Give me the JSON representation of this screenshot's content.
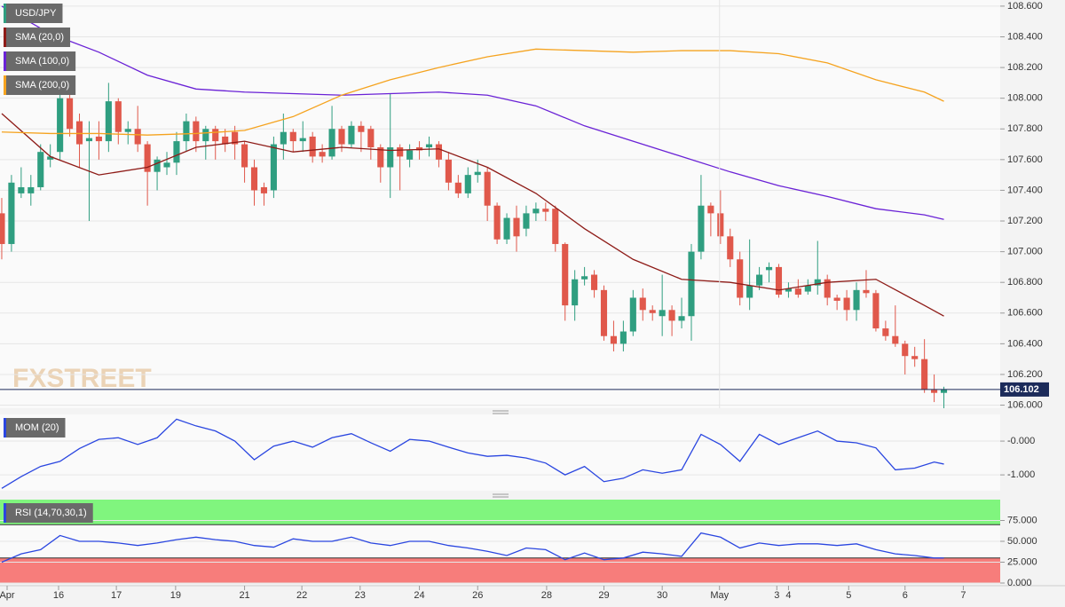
{
  "chart_data": [
    {
      "type": "candlestick",
      "watermark": "FXSTREET",
      "last_price": 106.102,
      "last_price_color": "#1c2b5a",
      "xlim": [
        -0.18,
        102.8
      ],
      "ylim": [
        105.98,
        108.64
      ],
      "yticks": [
        {
          "value": 106.0,
          "label": "106.000"
        },
        {
          "value": 106.2,
          "label": "106.200"
        },
        {
          "value": 106.4,
          "label": "106.400"
        },
        {
          "value": 106.6,
          "label": "106.600"
        },
        {
          "value": 106.8,
          "label": "106.800"
        },
        {
          "value": 107.0,
          "label": "107.000"
        },
        {
          "value": 107.2,
          "label": "107.200"
        },
        {
          "value": 107.4,
          "label": "107.400"
        },
        {
          "value": 107.6,
          "label": "107.600"
        },
        {
          "value": 107.8,
          "label": "107.800"
        },
        {
          "value": 108.0,
          "label": "108.000"
        },
        {
          "value": 108.2,
          "label": "108.200"
        },
        {
          "value": 108.4,
          "label": "108.400"
        },
        {
          "value": 108.6,
          "label": "108.600"
        }
      ],
      "series": [
        {
          "name": "USD/JPY",
          "type": "candlestick",
          "color": "#2f9e80",
          "up_color": "#2f9e80",
          "down_color": "#e0584b",
          "open": [
            107.25,
            107.05,
            107.38,
            107.38,
            107.42,
            107.6,
            107.65,
            108.0,
            107.85,
            107.72,
            107.75,
            107.72,
            107.98,
            107.78,
            107.8,
            107.7,
            107.52,
            107.55,
            107.58,
            107.72,
            107.85,
            107.72,
            107.8,
            107.75,
            107.78,
            107.7,
            107.55,
            107.42,
            107.4,
            107.7,
            107.78,
            107.72,
            107.75,
            107.65,
            107.62,
            107.8,
            107.7,
            107.82,
            107.8,
            107.68,
            107.55,
            107.68,
            107.6,
            107.68,
            107.68,
            107.7,
            107.6,
            107.45,
            107.38,
            107.5,
            107.52,
            107.3,
            107.08,
            107.22,
            107.15,
            107.25,
            107.28,
            107.28,
            107.05,
            106.65,
            106.82,
            106.85,
            106.75,
            106.45,
            106.4,
            106.48,
            106.7,
            106.62,
            106.58,
            106.62,
            106.55,
            106.58,
            107.0,
            107.3,
            107.25,
            107.1,
            106.95,
            106.7,
            106.78,
            106.88,
            106.9,
            106.74,
            106.76,
            106.74,
            106.78,
            106.82,
            106.7,
            106.7,
            106.62,
            106.75,
            106.73,
            106.5,
            106.45,
            106.4,
            106.32,
            106.3,
            106.1,
            106.08
          ],
          "high": [
            107.35,
            107.5,
            107.55,
            107.5,
            107.7,
            107.7,
            108.05,
            108.05,
            107.9,
            107.85,
            107.85,
            108.1,
            108.0,
            107.85,
            107.95,
            107.72,
            107.62,
            107.65,
            107.78,
            107.9,
            107.88,
            107.82,
            107.82,
            107.8,
            107.82,
            107.72,
            107.6,
            107.45,
            107.75,
            107.9,
            107.8,
            107.85,
            107.78,
            107.7,
            107.95,
            107.82,
            107.85,
            107.85,
            107.82,
            107.7,
            108.03,
            107.7,
            107.7,
            107.72,
            107.75,
            107.72,
            107.65,
            107.5,
            107.55,
            107.6,
            107.55,
            107.32,
            107.25,
            107.3,
            107.3,
            107.32,
            107.32,
            107.3,
            107.06,
            106.88,
            106.9,
            106.88,
            106.78,
            106.55,
            106.55,
            106.75,
            106.76,
            106.65,
            106.85,
            106.65,
            106.7,
            107.05,
            107.5,
            107.32,
            107.4,
            107.15,
            107.0,
            107.08,
            106.9,
            106.93,
            106.92,
            106.8,
            106.82,
            106.82,
            107.07,
            106.85,
            106.72,
            106.75,
            106.8,
            106.88,
            106.75,
            106.55,
            106.65,
            106.42,
            106.38,
            106.43,
            106.2,
            106.12
          ],
          "low": [
            106.95,
            107.0,
            107.35,
            107.3,
            107.4,
            107.55,
            107.6,
            107.75,
            107.55,
            107.2,
            107.6,
            107.65,
            107.7,
            107.7,
            107.65,
            107.3,
            107.4,
            107.5,
            107.5,
            107.65,
            107.65,
            107.6,
            107.6,
            107.65,
            107.6,
            107.45,
            107.3,
            107.3,
            107.35,
            107.6,
            107.65,
            107.65,
            107.58,
            107.58,
            107.6,
            107.65,
            107.68,
            107.65,
            107.6,
            107.45,
            107.35,
            107.4,
            107.55,
            107.6,
            107.62,
            107.55,
            107.4,
            107.35,
            107.35,
            107.45,
            107.2,
            107.05,
            107.05,
            107.0,
            107.1,
            107.2,
            107.2,
            107.0,
            106.55,
            106.55,
            106.78,
            106.7,
            106.42,
            106.35,
            106.35,
            106.45,
            106.55,
            106.55,
            106.45,
            106.45,
            106.5,
            106.42,
            106.95,
            107.1,
            107.05,
            106.9,
            106.65,
            106.62,
            106.75,
            106.8,
            106.7,
            106.7,
            106.7,
            106.72,
            106.72,
            106.65,
            106.62,
            106.55,
            106.55,
            106.7,
            106.48,
            106.42,
            106.38,
            106.2,
            106.25,
            106.08,
            106.02,
            105.98
          ],
          "close": [
            107.05,
            107.45,
            107.42,
            107.42,
            107.65,
            107.62,
            108.0,
            107.8,
            107.7,
            107.74,
            107.72,
            107.98,
            107.78,
            107.8,
            107.7,
            107.52,
            107.6,
            107.58,
            107.72,
            107.85,
            107.72,
            107.8,
            107.72,
            107.7,
            107.7,
            107.55,
            107.4,
            107.38,
            107.7,
            107.78,
            107.72,
            107.74,
            107.62,
            107.62,
            107.8,
            107.7,
            107.82,
            107.78,
            107.68,
            107.55,
            107.68,
            107.62,
            107.66,
            107.66,
            107.7,
            107.6,
            107.45,
            107.38,
            107.5,
            107.52,
            107.3,
            107.08,
            107.22,
            107.1,
            107.25,
            107.28,
            107.26,
            107.05,
            106.65,
            106.82,
            106.84,
            106.75,
            106.45,
            106.4,
            106.48,
            106.7,
            106.62,
            106.6,
            106.62,
            106.55,
            106.58,
            107.0,
            107.3,
            107.25,
            107.1,
            106.95,
            106.7,
            106.78,
            106.85,
            106.9,
            106.72,
            106.76,
            106.72,
            106.78,
            106.82,
            106.7,
            106.68,
            106.62,
            106.75,
            106.73,
            106.5,
            106.45,
            106.4,
            106.32,
            106.3,
            106.1,
            106.08,
            106.102
          ]
        },
        {
          "name": "SMA (20,0)",
          "type": "line",
          "color": "#8e1b17",
          "x": [
            0,
            5,
            10,
            15,
            20,
            25,
            30,
            35,
            40,
            45,
            50,
            55,
            60,
            65,
            70,
            75,
            80,
            85,
            90,
            95,
            97
          ],
          "values": [
            107.9,
            107.62,
            107.5,
            107.55,
            107.68,
            107.72,
            107.65,
            107.68,
            107.66,
            107.67,
            107.55,
            107.38,
            107.15,
            106.95,
            106.82,
            106.8,
            106.75,
            106.8,
            106.82,
            106.65,
            106.58
          ]
        },
        {
          "name": "SMA (100,0)",
          "type": "line",
          "color": "#6a22d6",
          "x": [
            0,
            5,
            10,
            15,
            20,
            25,
            30,
            35,
            40,
            45,
            50,
            55,
            60,
            65,
            70,
            75,
            80,
            85,
            90,
            95,
            97
          ],
          "values": [
            108.6,
            108.42,
            108.3,
            108.15,
            108.06,
            108.04,
            108.03,
            108.02,
            108.03,
            108.04,
            108.02,
            107.95,
            107.82,
            107.72,
            107.62,
            107.52,
            107.43,
            107.36,
            107.28,
            107.24,
            107.21
          ]
        },
        {
          "name": "SMA (200,0)",
          "type": "line",
          "color": "#f5a31f",
          "x": [
            0,
            5,
            10,
            15,
            20,
            25,
            30,
            35,
            40,
            45,
            50,
            55,
            60,
            65,
            70,
            75,
            80,
            85,
            90,
            95,
            97
          ],
          "values": [
            107.78,
            107.77,
            107.77,
            107.76,
            107.77,
            107.79,
            107.88,
            108.02,
            108.12,
            108.2,
            108.27,
            108.32,
            108.31,
            108.3,
            108.31,
            108.31,
            108.29,
            108.23,
            108.12,
            108.04,
            107.98
          ]
        }
      ]
    },
    {
      "type": "line",
      "xlim": [
        -0.18,
        102.8
      ],
      "ylim": [
        -1.47,
        0.79
      ],
      "yticks": [
        {
          "value": 0,
          "label": "-0.000"
        },
        {
          "value": -1,
          "label": "-1.000"
        }
      ],
      "series": [
        {
          "name": "MOM (20)",
          "color": "#2a46e0",
          "x": [
            0,
            2,
            4,
            6,
            8,
            10,
            12,
            14,
            16,
            18,
            20,
            22,
            24,
            26,
            28,
            30,
            32,
            34,
            36,
            38,
            40,
            42,
            44,
            46,
            48,
            50,
            52,
            54,
            56,
            58,
            60,
            62,
            64,
            66,
            68,
            70,
            72,
            74,
            76,
            78,
            80,
            82,
            84,
            86,
            88,
            90,
            92,
            94,
            96,
            97
          ],
          "values": [
            -1.4,
            -1.05,
            -0.75,
            -0.6,
            -0.22,
            0.05,
            0.1,
            -0.1,
            0.1,
            0.65,
            0.45,
            0.3,
            0.0,
            -0.55,
            -0.15,
            0.0,
            -0.18,
            0.1,
            0.22,
            -0.05,
            -0.3,
            0.05,
            0.0,
            -0.18,
            -0.35,
            -0.45,
            -0.42,
            -0.5,
            -0.65,
            -1.0,
            -0.75,
            -1.2,
            -1.1,
            -0.85,
            -0.95,
            -0.85,
            0.2,
            -0.1,
            -0.6,
            0.2,
            -0.1,
            0.1,
            0.3,
            0.0,
            -0.05,
            -0.2,
            -0.85,
            -0.8,
            -0.62,
            -0.68
          ]
        }
      ]
    },
    {
      "type": "line",
      "xlim": [
        -0.18,
        102.8
      ],
      "ylim": [
        0,
        100
      ],
      "upper_band": 70,
      "lower_band": 30,
      "upper_color": "#80f57e",
      "lower_color": "#f77d7b",
      "yticks": [
        {
          "value": 0,
          "label": "0.000"
        },
        {
          "value": 25,
          "label": "25.000"
        },
        {
          "value": 50,
          "label": "50.000"
        },
        {
          "value": 75,
          "label": "75.000"
        }
      ],
      "xticks": [
        {
          "value": 0.55,
          "label": "Apr"
        },
        {
          "value": 5.85,
          "label": "16"
        },
        {
          "value": 11.8,
          "label": "17"
        },
        {
          "value": 17.9,
          "label": "19"
        },
        {
          "value": 25,
          "label": "21"
        },
        {
          "value": 30.9,
          "label": "22"
        },
        {
          "value": 36.9,
          "label": "23"
        },
        {
          "value": 43,
          "label": "24"
        },
        {
          "value": 49,
          "label": "26"
        },
        {
          "value": 56.1,
          "label": "28"
        },
        {
          "value": 62,
          "label": "29"
        },
        {
          "value": 68,
          "label": "30"
        },
        {
          "value": 73.9,
          "label": "May"
        },
        {
          "value": 79.8,
          "label": "3"
        },
        {
          "value": 81,
          "label": "4"
        },
        {
          "value": 87.2,
          "label": "5"
        },
        {
          "value": 93,
          "label": "6"
        },
        {
          "value": 99,
          "label": "7"
        }
      ],
      "series": [
        {
          "name": "RSI (14,70,30,1)",
          "color": "#2a46e0",
          "x": [
            0,
            2,
            4,
            6,
            8,
            10,
            12,
            14,
            16,
            18,
            20,
            22,
            24,
            26,
            28,
            30,
            32,
            34,
            36,
            38,
            40,
            42,
            44,
            46,
            48,
            50,
            52,
            54,
            56,
            58,
            60,
            62,
            64,
            66,
            68,
            70,
            72,
            74,
            76,
            78,
            80,
            82,
            84,
            86,
            88,
            90,
            92,
            94,
            96,
            97
          ],
          "values": [
            25,
            35,
            40,
            57,
            50,
            50,
            48,
            45,
            48,
            52,
            55,
            52,
            50,
            45,
            43,
            53,
            50,
            50,
            55,
            48,
            45,
            50,
            50,
            45,
            42,
            38,
            33,
            42,
            40,
            28,
            36,
            28,
            30,
            37,
            35,
            32,
            60,
            55,
            42,
            48,
            45,
            47,
            47,
            45,
            47,
            40,
            35,
            33,
            30,
            30
          ]
        }
      ]
    }
  ]
}
